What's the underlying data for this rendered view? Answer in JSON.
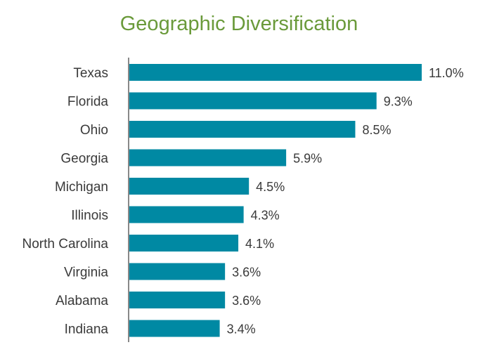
{
  "colors": {
    "title": "#6a9a3a",
    "bar": "#0089a3",
    "axis": "#888888",
    "text": "#3a3a3a"
  },
  "chart_data": {
    "type": "bar",
    "orientation": "horizontal",
    "title": "Geographic Diversification",
    "xlabel": "",
    "ylabel": "",
    "categories": [
      "Texas",
      "Florida",
      "Ohio",
      "Georgia",
      "Michigan",
      "Illinois",
      "North Carolina",
      "Virginia",
      "Alabama",
      "Indiana"
    ],
    "values": [
      11.0,
      9.3,
      8.5,
      5.9,
      4.5,
      4.3,
      4.1,
      3.6,
      3.6,
      3.4
    ],
    "value_labels": [
      "11.0%",
      "9.3%",
      "8.5%",
      "5.9%",
      "4.5%",
      "4.3%",
      "4.1%",
      "3.6%",
      "3.6%",
      "3.4%"
    ],
    "unit": "%",
    "xlim": [
      0,
      11.0
    ],
    "grid": false,
    "legend": "none"
  }
}
